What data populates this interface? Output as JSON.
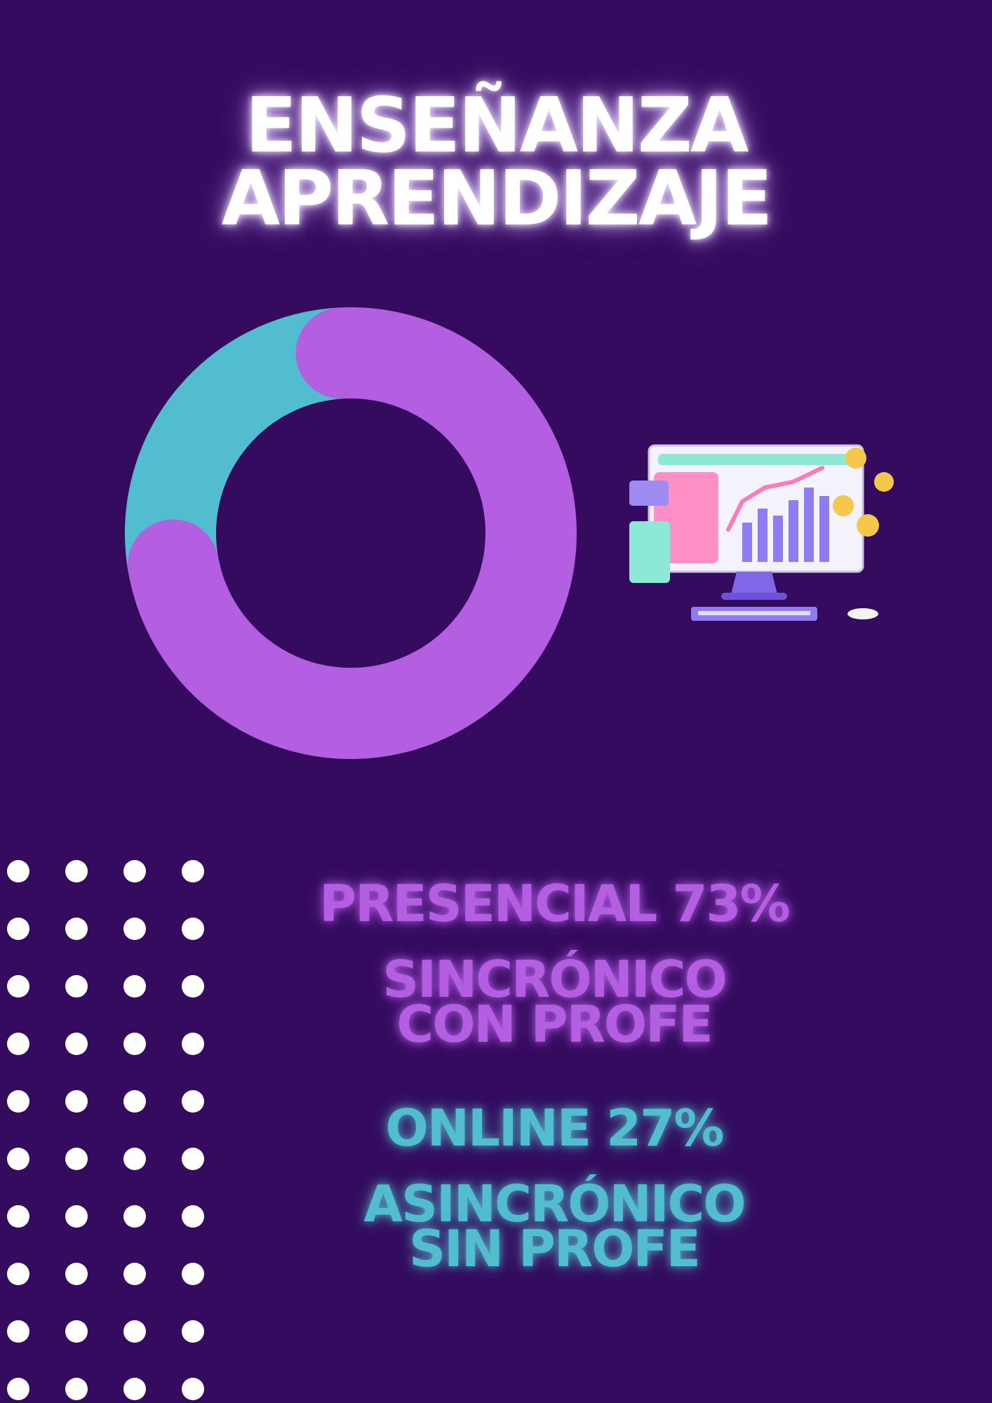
{
  "title": {
    "line1": "ENSEÑANZA",
    "line2": "APRENDIZAJE"
  },
  "legend": {
    "presencial": {
      "label": "PRESENCIAL 73%",
      "desc_line1": "SINCRÓNICO",
      "desc_line2": "CON PROFE"
    },
    "online": {
      "label": "ONLINE 27%",
      "desc_line1": "ASINCRÓNICO",
      "desc_line2": "SIN PROFE"
    }
  },
  "colors": {
    "background": "#340b5e",
    "presencial": "#b45ee2",
    "online": "#52bdce"
  },
  "illustration": "computer-analytics-icon",
  "chart_data": {
    "type": "pie",
    "style": "donut",
    "categories": [
      "PRESENCIAL",
      "ONLINE"
    ],
    "values": [
      73,
      27
    ],
    "colors": [
      "#b45ee2",
      "#52bdce"
    ]
  }
}
